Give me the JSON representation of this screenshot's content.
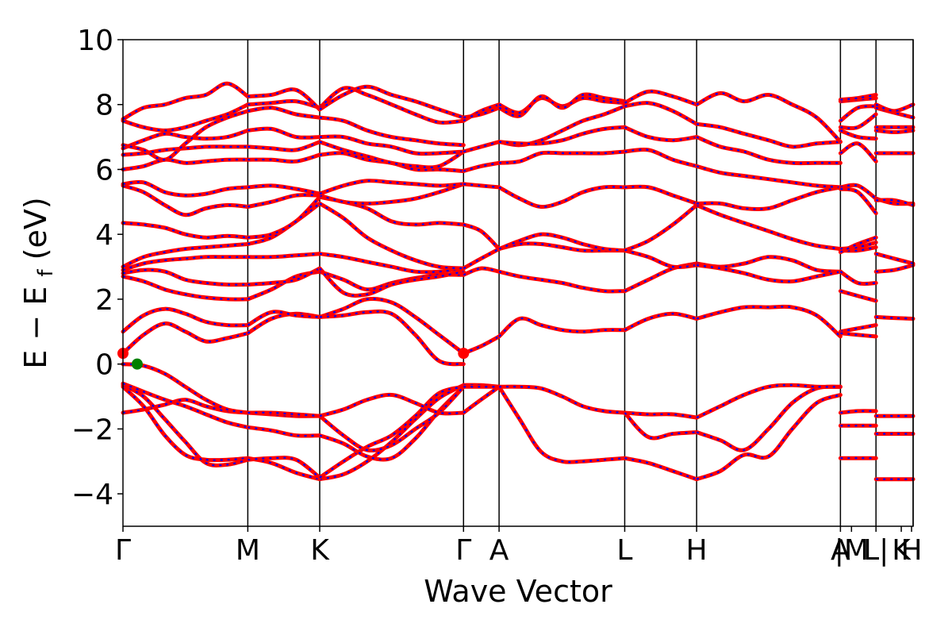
{
  "chart_data": {
    "type": "line",
    "title": "",
    "xlabel": "Wave Vector",
    "ylabel": {
      "main": "E − E",
      "sub": "f",
      "unit": "(eV)"
    },
    "ylim": [
      -5,
      10
    ],
    "y_ticks": [
      -4,
      -2,
      0,
      2,
      4,
      6,
      8,
      10
    ],
    "y_tick_labels": [
      "−4",
      "−2",
      "0",
      "2",
      "4",
      "6",
      "8",
      "10"
    ],
    "x_ticks": [
      {
        "x": 0.0,
        "label": "Γ"
      },
      {
        "x": 0.158,
        "label": "M"
      },
      {
        "x": 0.249,
        "label": "K"
      },
      {
        "x": 0.431,
        "label": "Γ"
      },
      {
        "x": 0.476,
        "label": "A"
      },
      {
        "x": 0.635,
        "label": "L"
      },
      {
        "x": 0.726,
        "label": "H"
      },
      {
        "x": 0.908,
        "label": "A"
      },
      {
        "x": 0.922,
        "label": "|M"
      },
      {
        "x": 0.953,
        "label": "L|"
      },
      {
        "x": 0.985,
        "label": "K"
      },
      {
        "x": 0.998,
        "label": "H"
      }
    ],
    "vlines": [
      0.158,
      0.249,
      0.431,
      0.476,
      0.635,
      0.726,
      0.908,
      0.953,
      1.0
    ],
    "xlim": [
      0,
      1
    ],
    "series_colors": {
      "primary": "#ff0000",
      "overlay": "#0000ff"
    },
    "markers": [
      {
        "name": "conduction band minimum",
        "x": 0.0,
        "y": 0.33,
        "color": "#ff0000"
      },
      {
        "name": "conduction band minimum",
        "x": 0.431,
        "y": 0.33,
        "color": "#ff0000"
      },
      {
        "name": "valence band maximum",
        "x": 0.018,
        "y": 0.0,
        "color": "#008000"
      }
    ],
    "segments": [
      {
        "range": [
          0.0,
          0.158
        ],
        "x": [
          0.0,
          0.026,
          0.053,
          0.079,
          0.105,
          0.132,
          0.158
        ],
        "bands": [
          [
            -1.5,
            -1.4,
            -1.25,
            -1.1,
            -1.3,
            -1.45,
            -1.5
          ],
          [
            -0.7,
            -1.3,
            -2.2,
            -2.8,
            -2.95,
            -2.95,
            -2.9
          ],
          [
            -0.65,
            -1.0,
            -1.7,
            -2.4,
            -3.05,
            -3.1,
            -2.95
          ],
          [
            -0.6,
            -0.85,
            -1.1,
            -1.3,
            -1.55,
            -1.8,
            -1.95
          ],
          [
            0.0,
            -0.05,
            -0.3,
            -0.7,
            -1.1,
            -1.4,
            -1.5
          ],
          [
            0.33,
            0.9,
            1.25,
            1.0,
            0.7,
            0.8,
            0.95
          ],
          [
            1.0,
            1.5,
            1.7,
            1.55,
            1.3,
            1.2,
            1.2
          ],
          [
            2.7,
            2.55,
            2.3,
            2.15,
            2.05,
            2.0,
            2.0
          ],
          [
            2.8,
            2.9,
            2.85,
            2.6,
            2.5,
            2.45,
            2.45
          ],
          [
            2.9,
            3.1,
            3.2,
            3.25,
            3.3,
            3.3,
            3.3
          ],
          [
            3.0,
            3.3,
            3.45,
            3.55,
            3.6,
            3.65,
            3.7
          ],
          [
            4.35,
            4.3,
            4.2,
            4.0,
            3.9,
            3.95,
            3.9
          ],
          [
            5.5,
            5.3,
            4.9,
            4.6,
            4.8,
            4.9,
            4.85
          ],
          [
            5.55,
            5.6,
            5.3,
            5.2,
            5.25,
            5.4,
            5.45
          ],
          [
            6.0,
            6.1,
            6.3,
            6.2,
            6.25,
            6.3,
            6.3
          ],
          [
            6.45,
            6.5,
            6.6,
            6.65,
            6.7,
            6.7,
            6.7
          ],
          [
            6.65,
            6.9,
            7.1,
            7.0,
            6.95,
            7.0,
            7.2
          ],
          [
            6.75,
            6.6,
            6.3,
            6.8,
            7.3,
            7.6,
            7.8
          ],
          [
            7.5,
            7.3,
            7.2,
            7.3,
            7.5,
            7.7,
            8.0
          ],
          [
            7.55,
            7.9,
            8.0,
            8.2,
            8.3,
            8.65,
            8.25
          ]
        ]
      },
      {
        "range": [
          0.158,
          0.249
        ],
        "x": [
          0.158,
          0.188,
          0.219,
          0.249
        ],
        "bands": [
          [
            -2.9,
            -3.05,
            -3.35,
            -3.55
          ],
          [
            -2.95,
            -2.9,
            -2.95,
            -3.5
          ],
          [
            -1.95,
            -2.05,
            -2.2,
            -2.2
          ],
          [
            -1.5,
            -1.55,
            -1.6,
            -1.6
          ],
          [
            -1.5,
            -1.5,
            -1.55,
            -1.6
          ],
          [
            0.95,
            1.4,
            1.55,
            1.45
          ],
          [
            1.2,
            1.6,
            1.5,
            1.45
          ],
          [
            2.0,
            2.3,
            2.7,
            2.85
          ],
          [
            2.45,
            2.5,
            2.6,
            2.95
          ],
          [
            3.3,
            3.3,
            3.35,
            3.4
          ],
          [
            3.7,
            3.9,
            4.4,
            4.95
          ],
          [
            3.9,
            4.0,
            4.4,
            5.15
          ],
          [
            4.85,
            5.0,
            5.2,
            5.2
          ],
          [
            5.45,
            5.5,
            5.4,
            5.25
          ],
          [
            6.3,
            6.3,
            6.25,
            6.45
          ],
          [
            6.7,
            6.65,
            6.6,
            6.85
          ],
          [
            7.2,
            7.25,
            7.0,
            7.0
          ],
          [
            7.8,
            7.9,
            7.7,
            7.6
          ],
          [
            8.0,
            8.05,
            8.1,
            7.9
          ],
          [
            8.25,
            8.3,
            8.45,
            7.85
          ]
        ]
      },
      {
        "range": [
          0.249,
          0.431
        ],
        "x": [
          0.249,
          0.279,
          0.309,
          0.34,
          0.37,
          0.4,
          0.431
        ],
        "bands": [
          [
            -3.55,
            -3.4,
            -3.0,
            -2.4,
            -1.7,
            -1.05,
            -0.65
          ],
          [
            -3.5,
            -3.0,
            -2.55,
            -2.2,
            -1.6,
            -0.9,
            -0.7
          ],
          [
            -2.2,
            -2.45,
            -2.85,
            -2.9,
            -2.3,
            -1.45,
            -0.7
          ],
          [
            -1.6,
            -2.2,
            -2.65,
            -2.5,
            -2.0,
            -1.5,
            -0.7
          ],
          [
            -1.6,
            -1.4,
            -1.1,
            -0.95,
            -1.2,
            -1.5,
            -1.5
          ],
          [
            1.45,
            1.7,
            2.0,
            1.9,
            1.45,
            0.9,
            0.33
          ],
          [
            1.45,
            1.5,
            1.6,
            1.55,
            0.9,
            0.1,
            0.0
          ],
          [
            2.85,
            2.6,
            2.3,
            2.5,
            2.65,
            2.75,
            2.75
          ],
          [
            2.95,
            2.2,
            2.15,
            2.45,
            2.6,
            2.7,
            2.85
          ],
          [
            3.4,
            3.3,
            3.15,
            3.0,
            2.85,
            2.85,
            2.95
          ],
          [
            4.95,
            4.5,
            3.9,
            3.5,
            3.2,
            3.0,
            2.95
          ],
          [
            5.15,
            5.0,
            4.8,
            4.4,
            4.3,
            4.35,
            4.3
          ],
          [
            5.2,
            5.0,
            4.95,
            5.0,
            5.1,
            5.3,
            5.55
          ],
          [
            5.25,
            5.5,
            5.65,
            5.6,
            5.55,
            5.5,
            5.55
          ],
          [
            6.45,
            6.5,
            6.3,
            6.2,
            6.0,
            6.0,
            5.95
          ],
          [
            6.85,
            6.6,
            6.4,
            6.2,
            6.1,
            6.1,
            6.55
          ],
          [
            7.0,
            7.0,
            6.8,
            6.7,
            6.5,
            6.5,
            6.55
          ],
          [
            7.6,
            7.5,
            7.2,
            7.0,
            6.9,
            6.8,
            6.75
          ],
          [
            7.9,
            8.5,
            8.3,
            8.0,
            7.7,
            7.45,
            7.5
          ],
          [
            7.85,
            8.3,
            8.55,
            8.3,
            8.1,
            7.85,
            7.6
          ]
        ]
      },
      {
        "range": [
          0.431,
          0.476
        ],
        "x": [
          0.431,
          0.453,
          0.476
        ],
        "bands": [
          [
            -0.65,
            -0.65,
            -0.7
          ],
          [
            -0.7,
            -0.7,
            -0.7
          ],
          [
            -1.5,
            -1.1,
            -0.7
          ],
          [
            0.33,
            0.55,
            0.85
          ],
          [
            2.75,
            2.95,
            2.85
          ],
          [
            2.95,
            3.25,
            3.55
          ],
          [
            4.3,
            4.1,
            3.55
          ],
          [
            5.55,
            5.5,
            5.45
          ],
          [
            5.95,
            6.1,
            6.2
          ],
          [
            6.55,
            6.7,
            6.85
          ],
          [
            7.5,
            7.8,
            8.0
          ],
          [
            7.6,
            7.7,
            7.9
          ]
        ]
      },
      {
        "range": [
          0.476,
          0.635
        ],
        "x": [
          0.476,
          0.502,
          0.529,
          0.556,
          0.582,
          0.609,
          0.635
        ],
        "bands": [
          [
            -0.7,
            -1.7,
            -2.7,
            -3.0,
            -3.0,
            -2.95,
            -2.9
          ],
          [
            -0.7,
            -0.7,
            -0.75,
            -1.0,
            -1.3,
            -1.45,
            -1.5
          ],
          [
            0.85,
            1.4,
            1.2,
            1.05,
            1.0,
            1.05,
            1.05
          ],
          [
            2.85,
            2.7,
            2.6,
            2.5,
            2.35,
            2.25,
            2.25
          ],
          [
            3.55,
            3.7,
            3.7,
            3.6,
            3.5,
            3.5,
            3.5
          ],
          [
            3.55,
            3.8,
            4.0,
            3.9,
            3.7,
            3.55,
            3.5
          ],
          [
            5.45,
            5.1,
            4.85,
            5.0,
            5.3,
            5.45,
            5.45
          ],
          [
            6.2,
            6.25,
            6.5,
            6.5,
            6.5,
            6.5,
            6.55
          ],
          [
            6.85,
            6.75,
            6.9,
            7.2,
            7.5,
            7.7,
            7.95
          ],
          [
            8.0,
            7.75,
            8.2,
            7.95,
            8.2,
            8.1,
            8.05
          ],
          [
            7.9,
            7.65,
            8.25,
            7.9,
            8.3,
            8.2,
            8.1
          ],
          [
            6.85,
            6.8,
            6.8,
            6.9,
            7.1,
            7.25,
            7.3
          ]
        ]
      },
      {
        "range": [
          0.635,
          0.726
        ],
        "x": [
          0.635,
          0.665,
          0.696,
          0.726
        ],
        "bands": [
          [
            -2.9,
            -3.05,
            -3.3,
            -3.55
          ],
          [
            -1.5,
            -1.55,
            -1.55,
            -1.65
          ],
          [
            -1.5,
            -2.25,
            -2.15,
            -2.1
          ],
          [
            1.05,
            1.4,
            1.55,
            1.4
          ],
          [
            2.25,
            2.6,
            2.95,
            3.1
          ],
          [
            3.5,
            3.3,
            3.0,
            3.05
          ],
          [
            3.5,
            3.8,
            4.3,
            4.9
          ],
          [
            5.45,
            5.45,
            5.2,
            4.95
          ],
          [
            6.55,
            6.6,
            6.3,
            6.1
          ],
          [
            7.3,
            7.0,
            6.9,
            7.0
          ],
          [
            7.95,
            8.05,
            7.8,
            7.4
          ],
          [
            8.05,
            8.4,
            8.25,
            8.0
          ]
        ]
      },
      {
        "range": [
          0.726,
          0.908
        ],
        "x": [
          0.726,
          0.756,
          0.786,
          0.817,
          0.847,
          0.878,
          0.908
        ],
        "bands": [
          [
            -3.55,
            -3.3,
            -2.8,
            -2.85,
            -2.0,
            -1.2,
            -0.95
          ],
          [
            -2.1,
            -2.35,
            -2.65,
            -2.0,
            -1.2,
            -0.75,
            -0.7
          ],
          [
            -1.65,
            -1.3,
            -0.95,
            -0.7,
            -0.65,
            -0.7,
            -0.7
          ],
          [
            1.4,
            1.6,
            1.75,
            1.75,
            1.75,
            1.5,
            0.85
          ],
          [
            3.1,
            3.0,
            3.1,
            3.3,
            3.2,
            2.9,
            2.85
          ],
          [
            3.05,
            2.95,
            2.8,
            2.6,
            2.55,
            2.7,
            2.85
          ],
          [
            4.9,
            4.6,
            4.35,
            4.1,
            3.85,
            3.65,
            3.55
          ],
          [
            4.95,
            4.95,
            4.8,
            4.8,
            5.05,
            5.3,
            5.45
          ],
          [
            6.1,
            5.9,
            5.8,
            5.7,
            5.6,
            5.5,
            5.45
          ],
          [
            7.0,
            6.7,
            6.55,
            6.3,
            6.2,
            6.2,
            6.2
          ],
          [
            7.4,
            7.3,
            7.1,
            6.9,
            6.7,
            6.8,
            6.85
          ],
          [
            8.0,
            8.35,
            8.1,
            8.3,
            8.0,
            7.6,
            6.85
          ]
        ]
      },
      {
        "range": [
          0.908,
          0.953
        ],
        "x": [
          0.908,
          0.93,
          0.953
        ],
        "bands": [
          [
            -2.9,
            -2.9,
            -2.9
          ],
          [
            -1.9,
            -1.9,
            -1.9
          ],
          [
            -1.5,
            -1.45,
            -1.45
          ],
          [
            1.0,
            1.1,
            1.2
          ],
          [
            0.95,
            0.9,
            0.85
          ],
          [
            2.25,
            2.1,
            1.95
          ],
          [
            2.85,
            2.5,
            2.5
          ],
          [
            3.5,
            3.5,
            3.6
          ],
          [
            3.55,
            3.6,
            3.75
          ],
          [
            3.45,
            3.7,
            3.9
          ],
          [
            5.45,
            5.5,
            5.1
          ],
          [
            5.4,
            5.3,
            4.65
          ],
          [
            6.5,
            6.8,
            6.25
          ],
          [
            7.2,
            7.0,
            6.95
          ],
          [
            7.3,
            7.3,
            7.7
          ],
          [
            7.5,
            7.9,
            7.95
          ],
          [
            8.1,
            8.15,
            8.2
          ],
          [
            8.15,
            8.2,
            8.3
          ]
        ]
      },
      {
        "range": [
          0.953,
          1.0
        ],
        "x": [
          0.953,
          0.976,
          1.0
        ],
        "bands": [
          [
            -3.55,
            -3.55,
            -3.55
          ],
          [
            -2.15,
            -2.15,
            -2.15
          ],
          [
            -1.6,
            -1.6,
            -1.6
          ],
          [
            1.45,
            1.42,
            1.4
          ],
          [
            2.85,
            2.9,
            3.05
          ],
          [
            3.4,
            3.25,
            3.1
          ],
          [
            5.1,
            4.95,
            4.95
          ],
          [
            5.05,
            5.05,
            4.9
          ],
          [
            6.5,
            6.5,
            6.5
          ],
          [
            7.2,
            7.15,
            7.2
          ],
          [
            7.3,
            7.3,
            7.3
          ],
          [
            7.9,
            7.75,
            7.6
          ],
          [
            8.0,
            7.8,
            8.0
          ]
        ]
      }
    ]
  }
}
